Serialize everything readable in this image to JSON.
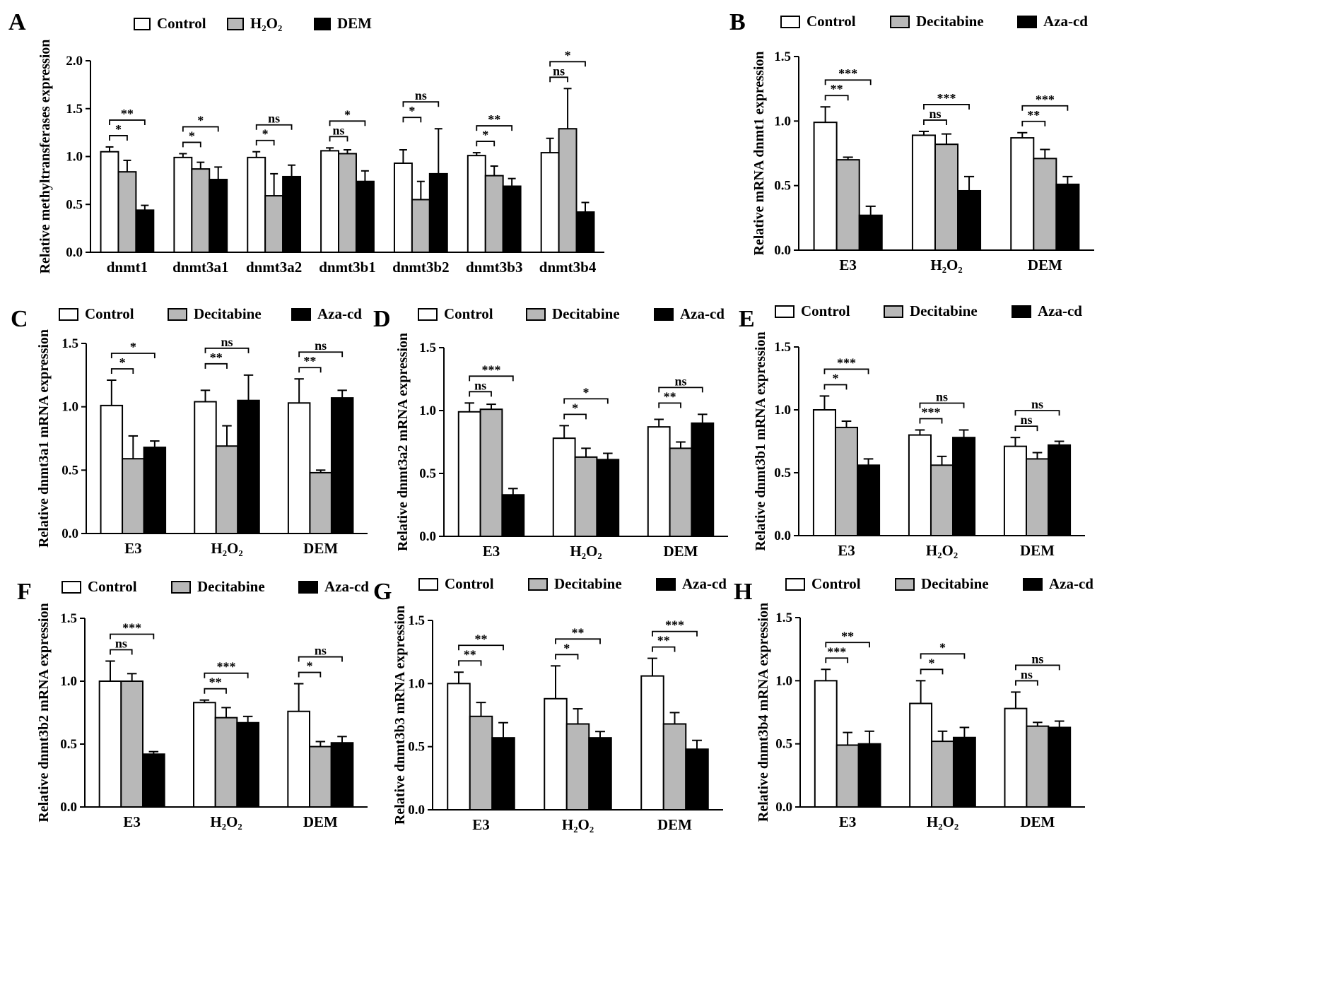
{
  "colors": {
    "control": "#ffffff",
    "group2": "#b8b8b8",
    "group3": "#000000",
    "axis": "#000000"
  },
  "chart_data": [
    {
      "panel": "A",
      "type": "bar",
      "ylabel": "Relative methyltransferases expression",
      "ylim": [
        0,
        2.0
      ],
      "yticks": [
        "0.0",
        "0.5",
        "1.0",
        "1.5",
        "2.0"
      ],
      "categories": [
        "dnmt1",
        "dnmt3a1",
        "dnmt3a2",
        "dnmt3b1",
        "dnmt3b2",
        "dnmt3b3",
        "dnmt3b4"
      ],
      "series": [
        {
          "name": "Control",
          "values": [
            1.05,
            0.99,
            0.99,
            1.06,
            0.93,
            1.01,
            1.04
          ],
          "err": [
            0.05,
            0.04,
            0.06,
            0.03,
            0.14,
            0.03,
            0.15
          ]
        },
        {
          "name": "H₂O₂",
          "values": [
            0.84,
            0.87,
            0.59,
            1.03,
            0.55,
            0.8,
            1.29
          ],
          "err": [
            0.12,
            0.07,
            0.23,
            0.04,
            0.19,
            0.1,
            0.42
          ]
        },
        {
          "name": "DEM",
          "values": [
            0.44,
            0.76,
            0.79,
            0.74,
            0.82,
            0.69,
            0.42
          ],
          "err": [
            0.05,
            0.13,
            0.12,
            0.11,
            0.47,
            0.08,
            0.1
          ]
        }
      ],
      "significance": [
        [
          "*",
          "**"
        ],
        [
          "*",
          "*"
        ],
        [
          "*",
          "ns"
        ],
        [
          "ns",
          "*"
        ],
        [
          "*",
          "ns"
        ],
        [
          "*",
          "**"
        ],
        [
          "ns",
          "*"
        ]
      ]
    },
    {
      "panel": "B",
      "type": "bar",
      "ylabel": "Relative mRNA dnmt1 expression",
      "ylim": [
        0,
        1.5
      ],
      "yticks": [
        "0.0",
        "0.5",
        "1.0",
        "1.5"
      ],
      "categories": [
        "E3",
        "H₂O₂",
        "DEM"
      ],
      "series": [
        {
          "name": "Control",
          "values": [
            0.99,
            0.89,
            0.87
          ],
          "err": [
            0.12,
            0.03,
            0.04
          ]
        },
        {
          "name": "Decitabine",
          "values": [
            0.7,
            0.82,
            0.71
          ],
          "err": [
            0.02,
            0.08,
            0.07
          ]
        },
        {
          "name": "Aza-cd",
          "values": [
            0.27,
            0.46,
            0.51
          ],
          "err": [
            0.07,
            0.11,
            0.06
          ]
        }
      ],
      "significance": [
        [
          "**",
          "***"
        ],
        [
          "ns",
          "***"
        ],
        [
          "**",
          "***"
        ]
      ]
    },
    {
      "panel": "C",
      "type": "bar",
      "ylabel": "Relative dnmt3a1 mRNA expression",
      "ylim": [
        0,
        1.5
      ],
      "yticks": [
        "0.0",
        "0.5",
        "1.0",
        "1.5"
      ],
      "categories": [
        "E3",
        "H₂O₂",
        "DEM"
      ],
      "series": [
        {
          "name": "Control",
          "values": [
            1.01,
            1.04,
            1.03
          ],
          "err": [
            0.2,
            0.09,
            0.19
          ]
        },
        {
          "name": "Decitabine",
          "values": [
            0.59,
            0.69,
            0.48
          ],
          "err": [
            0.18,
            0.16,
            0.02
          ]
        },
        {
          "name": "Aza-cd",
          "values": [
            0.68,
            1.05,
            1.07
          ],
          "err": [
            0.05,
            0.2,
            0.06
          ]
        }
      ],
      "significance": [
        [
          "*",
          "*"
        ],
        [
          "**",
          "ns"
        ],
        [
          "**",
          "ns"
        ]
      ]
    },
    {
      "panel": "D",
      "type": "bar",
      "ylabel": "Relative dnmt3a2 mRNA expression",
      "ylim": [
        0,
        1.5
      ],
      "yticks": [
        "0.0",
        "0.5",
        "1.0",
        "1.5"
      ],
      "categories": [
        "E3",
        "H₂O₂",
        "DEM"
      ],
      "series": [
        {
          "name": "Control",
          "values": [
            0.99,
            0.78,
            0.87
          ],
          "err": [
            0.07,
            0.1,
            0.06
          ]
        },
        {
          "name": "Decitabine",
          "values": [
            1.01,
            0.63,
            0.7
          ],
          "err": [
            0.04,
            0.07,
            0.05
          ]
        },
        {
          "name": "Aza-cd",
          "values": [
            0.33,
            0.61,
            0.9
          ],
          "err": [
            0.05,
            0.05,
            0.07
          ]
        }
      ],
      "significance": [
        [
          "ns",
          "***"
        ],
        [
          "*",
          "*"
        ],
        [
          "**",
          "ns"
        ]
      ]
    },
    {
      "panel": "E",
      "type": "bar",
      "ylabel": "Relative dnmt3b1 mRNA expression",
      "ylim": [
        0,
        1.5
      ],
      "yticks": [
        "0.0",
        "0.5",
        "1.0",
        "1.5"
      ],
      "categories": [
        "E3",
        "H₂O₂",
        "DEM"
      ],
      "series": [
        {
          "name": "Control",
          "values": [
            1.0,
            0.8,
            0.71
          ],
          "err": [
            0.11,
            0.04,
            0.07
          ]
        },
        {
          "name": "Decitabine",
          "values": [
            0.86,
            0.56,
            0.61
          ],
          "err": [
            0.05,
            0.07,
            0.05
          ]
        },
        {
          "name": "Aza-cd",
          "values": [
            0.56,
            0.78,
            0.72
          ],
          "err": [
            0.05,
            0.06,
            0.03
          ]
        }
      ],
      "significance": [
        [
          "*",
          "***"
        ],
        [
          "***",
          "ns"
        ],
        [
          "ns",
          "ns"
        ]
      ]
    },
    {
      "panel": "F",
      "type": "bar",
      "ylabel": "Relative dnmt3b2 mRNA expression",
      "ylim": [
        0,
        1.5
      ],
      "yticks": [
        "0.0",
        "0.5",
        "1.0",
        "1.5"
      ],
      "categories": [
        "E3",
        "H₂O₂",
        "DEM"
      ],
      "series": [
        {
          "name": "Control",
          "values": [
            1.0,
            0.83,
            0.76
          ],
          "err": [
            0.16,
            0.02,
            0.22
          ]
        },
        {
          "name": "Decitabine",
          "values": [
            1.0,
            0.71,
            0.48
          ],
          "err": [
            0.06,
            0.08,
            0.04
          ]
        },
        {
          "name": "Aza-cd",
          "values": [
            0.42,
            0.67,
            0.51
          ],
          "err": [
            0.02,
            0.05,
            0.05
          ]
        }
      ],
      "significance": [
        [
          "ns",
          "***"
        ],
        [
          "**",
          "***"
        ],
        [
          "*",
          "ns"
        ]
      ]
    },
    {
      "panel": "G",
      "type": "bar",
      "ylabel": "Relative dnmt3b3 mRNA expression",
      "ylim": [
        0,
        1.5
      ],
      "yticks": [
        "0.0",
        "0.5",
        "1.0",
        "1.5"
      ],
      "categories": [
        "E3",
        "H₂O₂",
        "DEM"
      ],
      "series": [
        {
          "name": "Control",
          "values": [
            1.0,
            0.88,
            1.06
          ],
          "err": [
            0.09,
            0.26,
            0.14
          ]
        },
        {
          "name": "Decitabine",
          "values": [
            0.74,
            0.68,
            0.68
          ],
          "err": [
            0.11,
            0.12,
            0.09
          ]
        },
        {
          "name": "Aza-cd",
          "values": [
            0.57,
            0.57,
            0.48
          ],
          "err": [
            0.12,
            0.05,
            0.07
          ]
        }
      ],
      "significance": [
        [
          "**",
          "**"
        ],
        [
          "*",
          "**"
        ],
        [
          "**",
          "***"
        ]
      ]
    },
    {
      "panel": "H",
      "type": "bar",
      "ylabel": "Relative dnmt3b4 mRNA expression",
      "ylim": [
        0,
        1.5
      ],
      "yticks": [
        "0.0",
        "0.5",
        "1.0",
        "1.5"
      ],
      "categories": [
        "E3",
        "H₂O₂",
        "DEM"
      ],
      "series": [
        {
          "name": "Control",
          "values": [
            1.0,
            0.82,
            0.78
          ],
          "err": [
            0.09,
            0.18,
            0.13
          ]
        },
        {
          "name": "Decitabine",
          "values": [
            0.49,
            0.52,
            0.64
          ],
          "err": [
            0.1,
            0.08,
            0.03
          ]
        },
        {
          "name": "Aza-cd",
          "values": [
            0.5,
            0.55,
            0.63
          ],
          "err": [
            0.1,
            0.08,
            0.05
          ]
        }
      ],
      "significance": [
        [
          "***",
          "**"
        ],
        [
          "*",
          "*"
        ],
        [
          "ns",
          "ns"
        ]
      ]
    }
  ]
}
